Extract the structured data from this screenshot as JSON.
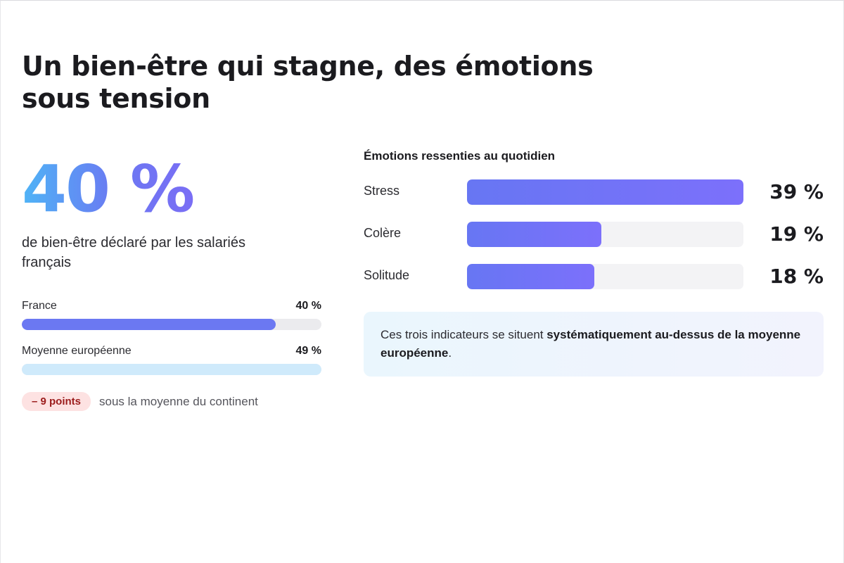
{
  "header": {
    "title": "Un bien-être qui stagne, des émotions sous tension"
  },
  "wellbeing": {
    "big_value": "40 %",
    "caption": "de bien-être déclaré par les salariés français",
    "comparison": [
      {
        "label": "France",
        "value_label": "40 %",
        "value": 40,
        "color": "#6b78f2"
      },
      {
        "label": "Moyenne européenne",
        "value_label": "49 %",
        "value": 49,
        "color": "#cfeafb"
      }
    ],
    "delta_badge": "– 9 points",
    "delta_text": "sous la moyenne du continent"
  },
  "emotions": {
    "title": "Émotions ressenties au quotidien",
    "items": [
      {
        "label": "Stress",
        "value_label": "39 %",
        "value": 39
      },
      {
        "label": "Colère",
        "value_label": "19 %",
        "value": 19
      },
      {
        "label": "Solitude",
        "value_label": "18 %",
        "value": 18
      }
    ],
    "note_prefix": "Ces trois indicateurs se situent ",
    "note_bold": "systématiquement au-dessus de la moyenne européenne",
    "note_suffix": "."
  },
  "colors": {
    "accent": "#6b78f2",
    "gradient_start": "#4fb4f6",
    "badge_bg": "#fde2e2",
    "badge_text": "#9b1c1c"
  }
}
